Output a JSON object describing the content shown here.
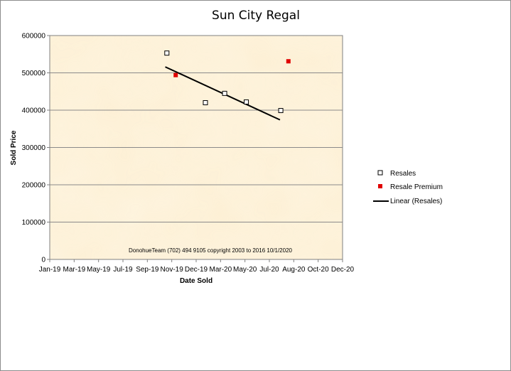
{
  "chart_data": {
    "type": "scatter",
    "title": "Sun City Regal",
    "xlabel": "Date Sold",
    "ylabel": "Sold Price",
    "ylim": [
      0,
      600000
    ],
    "yticks": [
      "0",
      "100000",
      "200000",
      "300000",
      "400000",
      "500000",
      "600000"
    ],
    "xticks": [
      "Jan-19",
      "Mar-19",
      "May-19",
      "Jul-19",
      "Sep-19",
      "Nov-19",
      "Dec-19",
      "Mar-20",
      "May-20",
      "Jul-20",
      "Aug-20",
      "Oct-20",
      "Dec-20"
    ],
    "grid": true,
    "legend_position": "right",
    "annotation": "DonohueTeam   (702) 494 9105 copyright  2003 to 2016  10/1/2020",
    "series": [
      {
        "name": "Resales",
        "marker": "hollow-square",
        "color": "#000000",
        "points": [
          {
            "x": "2019-10-20",
            "y": 553000
          },
          {
            "x": "2020-01-24",
            "y": 420000
          },
          {
            "x": "2020-03-12",
            "y": 445000
          },
          {
            "x": "2020-05-05",
            "y": 422000
          },
          {
            "x": "2020-07-30",
            "y": 399000
          }
        ]
      },
      {
        "name": "Resale Premium",
        "marker": "filled-square",
        "color": "#e00000",
        "points": [
          {
            "x": "2019-11-11",
            "y": 494000
          },
          {
            "x": "2020-08-18",
            "y": 531000
          }
        ]
      }
    ],
    "trendline": {
      "name": "Linear (Resales)",
      "color": "#000000",
      "from": {
        "x": "2019-10-16",
        "y": 516000
      },
      "to": {
        "x": "2020-07-28",
        "y": 374000
      }
    }
  }
}
